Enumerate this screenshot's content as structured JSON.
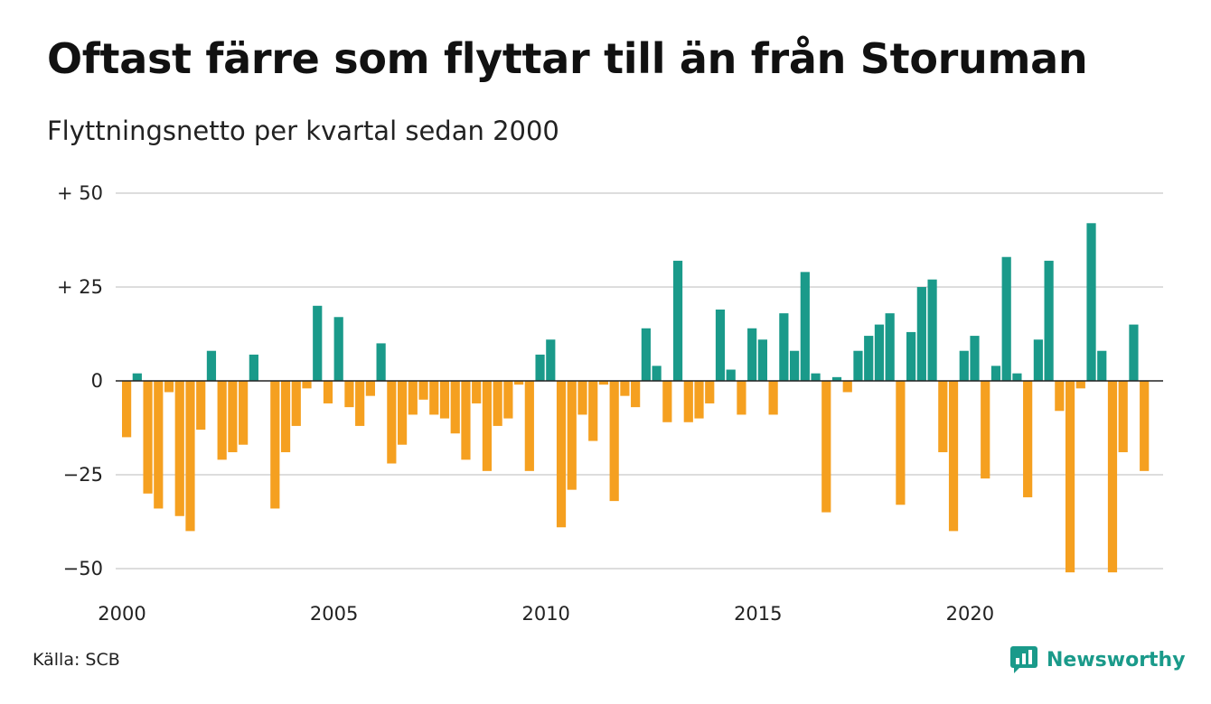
{
  "title": "Oftast färre som flyttar till än från Storuman",
  "subtitle": "Flyttningsnetto per kvartal sedan 2000",
  "source": "Källa: SCB",
  "brand": "Newsworthy",
  "colors": {
    "positive": "#1a9a8a",
    "negative": "#f5a020",
    "grid": "#dddddd",
    "brand": "#1a9a8a"
  },
  "chart_data": {
    "type": "bar",
    "title": "Oftast färre som flyttar till än från Storuman",
    "subtitle": "Flyttningsnetto per kvartal sedan 2000",
    "xlabel": "",
    "ylabel": "",
    "ylim": [
      -55,
      52
    ],
    "grid": true,
    "legend": "none",
    "y_ticks": [
      {
        "value": 50,
        "label": "+ 50"
      },
      {
        "value": 25,
        "label": "+ 25"
      },
      {
        "value": 0,
        "label": "0"
      },
      {
        "value": -25,
        "label": "−25"
      },
      {
        "value": -50,
        "label": "−50"
      }
    ],
    "x_ticks": [
      {
        "value": 2000,
        "label": "2000"
      },
      {
        "value": 2005,
        "label": "2005"
      },
      {
        "value": 2010,
        "label": "2010"
      },
      {
        "value": 2015,
        "label": "2015"
      },
      {
        "value": 2020,
        "label": "2020"
      }
    ],
    "first_quarter": "2000 Q1",
    "values": [
      -15,
      2,
      -30,
      -34,
      -3,
      -36,
      -40,
      -13,
      8,
      -21,
      -19,
      -17,
      7,
      0,
      -34,
      -19,
      -12,
      -2,
      20,
      -6,
      17,
      -7,
      -12,
      -4,
      10,
      -22,
      -17,
      -9,
      -5,
      -9,
      -10,
      -14,
      -21,
      -6,
      -24,
      -12,
      -10,
      -1,
      -24,
      7,
      11,
      -39,
      -29,
      -9,
      -16,
      -1,
      -32,
      -4,
      -7,
      14,
      4,
      -11,
      32,
      -11,
      -10,
      -6,
      19,
      3,
      -9,
      14,
      11,
      -9,
      18,
      8,
      29,
      2,
      -35,
      1,
      -3,
      8,
      12,
      15,
      18,
      -33,
      13,
      25,
      27,
      -19,
      -40,
      8,
      12,
      -26,
      4,
      33,
      2,
      -31,
      11,
      32,
      -8,
      -51,
      -2,
      42,
      8,
      -51,
      -19,
      15,
      -24
    ]
  }
}
